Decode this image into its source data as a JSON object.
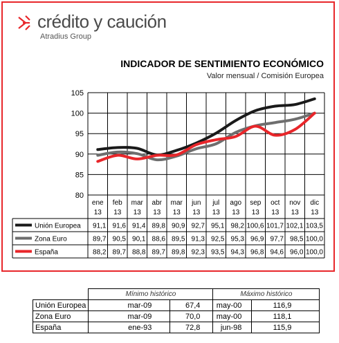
{
  "logo": {
    "name": "crédito y caución",
    "subtitle": "Atradius Group"
  },
  "chart_data": {
    "type": "line",
    "title": "INDICADOR DE SENTIMIENTO ECONÓMICO",
    "subtitle": "Valor mensual / Comisión Europea",
    "categories": [
      [
        "ene",
        "13"
      ],
      [
        "feb",
        "13"
      ],
      [
        "mar",
        "13"
      ],
      [
        "abr",
        "13"
      ],
      [
        "mar",
        "13"
      ],
      [
        "jun",
        "13"
      ],
      [
        "jul",
        "13"
      ],
      [
        "ago",
        "13"
      ],
      [
        "sep",
        "13"
      ],
      [
        "oct",
        "13"
      ],
      [
        "nov",
        "13"
      ],
      [
        "dic",
        "13"
      ]
    ],
    "ylim": [
      80,
      105
    ],
    "yticks": [
      80,
      85,
      90,
      95,
      100,
      105
    ],
    "grid": true,
    "series": [
      {
        "name": "Unión Europea",
        "color": "#1a1a1a",
        "values": [
          91.1,
          91.6,
          91.4,
          89.8,
          90.9,
          92.7,
          95.1,
          98.2,
          100.6,
          101.7,
          102.1,
          103.5
        ],
        "labels": [
          "91,1",
          "91,6",
          "91,4",
          "89,8",
          "90,9",
          "92,7",
          "95,1",
          "98,2",
          "100,6",
          "101,7",
          "102,1",
          "103,5"
        ]
      },
      {
        "name": "Zona Euro",
        "color": "#6e6e6e",
        "values": [
          89.7,
          90.5,
          90.1,
          88.6,
          89.5,
          91.3,
          92.5,
          95.3,
          96.9,
          97.7,
          98.5,
          100.0
        ],
        "labels": [
          "89,7",
          "90,5",
          "90,1",
          "88,6",
          "89,5",
          "91,3",
          "92,5",
          "95,3",
          "96,9",
          "97,7",
          "98,5",
          "100,0"
        ]
      },
      {
        "name": "España",
        "color": "#e8262a",
        "values": [
          88.2,
          89.7,
          88.8,
          89.7,
          89.8,
          92.3,
          93.5,
          94.3,
          96.8,
          94.6,
          96.0,
          100.0
        ],
        "labels": [
          "88,2",
          "89,7",
          "88,8",
          "89,7",
          "89,8",
          "92,3",
          "93,5",
          "94,3",
          "96,8",
          "94,6",
          "96,0",
          "100,0"
        ]
      }
    ]
  },
  "historic": {
    "headers": [
      "Mínimo histórico",
      "Máximo histórico"
    ],
    "rows": [
      {
        "name": "Unión Europea",
        "min_date": "mar-09",
        "min_val": "67,4",
        "max_date": "may-00",
        "max_val": "116,9"
      },
      {
        "name": "Zona Euro",
        "min_date": "mar-09",
        "min_val": "70,0",
        "max_date": "may-00",
        "max_val": "118,1"
      },
      {
        "name": "España",
        "min_date": "ene-93",
        "min_val": "72,8",
        "max_date": "jun-98",
        "max_val": "115,9"
      }
    ]
  }
}
